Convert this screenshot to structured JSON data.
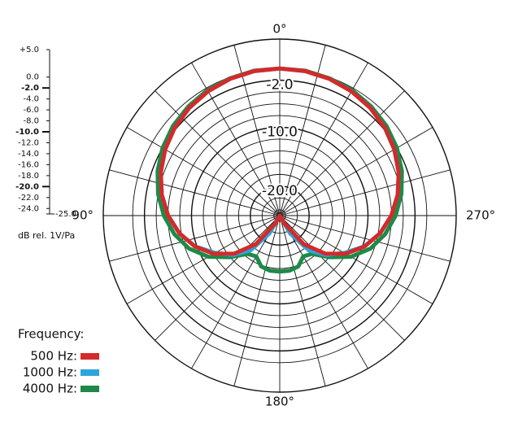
{
  "chart_data": {
    "type": "polar",
    "axis_label": "dB rel. 1V/Pa",
    "rlim": [
      -25,
      5
    ],
    "rticks": [
      {
        "value": 5,
        "label": "+5.0"
      },
      {
        "value": 0,
        "label": "0.0"
      },
      {
        "value": -2,
        "label": "-2.0"
      },
      {
        "value": -4,
        "label": "-4.0"
      },
      {
        "value": -6,
        "label": "-6.0"
      },
      {
        "value": -8,
        "label": "-8.0"
      },
      {
        "value": -10,
        "label": "-10.0"
      },
      {
        "value": -12,
        "label": "-12.0"
      },
      {
        "value": -14,
        "label": "-14.0"
      },
      {
        "value": -16,
        "label": "-16.0"
      },
      {
        "value": -18,
        "label": "-18.0"
      },
      {
        "value": -20,
        "label": "-20.0"
      },
      {
        "value": -22,
        "label": "-22.0"
      },
      {
        "value": -24,
        "label": "-24.0"
      },
      {
        "value": -25,
        "label": "-25.0"
      }
    ],
    "ring_labels": [
      {
        "value": -2,
        "label": "-2.0"
      },
      {
        "value": -10,
        "label": "-10.0"
      },
      {
        "value": -20,
        "label": "-20.0"
      }
    ],
    "angle_labels": [
      {
        "value": 0,
        "label": "0°"
      },
      {
        "value": 90,
        "label": "90°"
      },
      {
        "value": 180,
        "label": "180°"
      },
      {
        "value": 270,
        "label": "270°"
      }
    ],
    "spoke_step": 15,
    "angles": [
      0,
      10,
      20,
      30,
      40,
      50,
      60,
      70,
      80,
      90,
      100,
      110,
      120,
      130,
      140,
      150,
      160,
      170,
      180,
      190,
      200,
      210,
      220,
      230,
      240,
      250,
      260,
      270,
      280,
      290,
      300,
      310,
      320,
      330,
      340,
      350
    ],
    "legend_title": "Frequency:",
    "series": [
      {
        "name": "500 Hz:",
        "color": "#d42a2a",
        "values": [
          0,
          -0.07,
          -0.27,
          -0.6,
          -1.08,
          -1.71,
          -2.5,
          -3.47,
          -4.63,
          -6.02,
          -7.68,
          -9.65,
          -12.04,
          -14.95,
          -18.65,
          -23.5,
          -25,
          -25,
          -25,
          -25,
          -25,
          -23.5,
          -18.65,
          -14.95,
          -12.04,
          -9.65,
          -7.68,
          -6.02,
          -4.63,
          -3.47,
          -2.5,
          -1.71,
          -1.08,
          -0.6,
          -0.27,
          -0.07
        ]
      },
      {
        "name": "1000 Hz:",
        "color": "#2aa6de",
        "values": [
          0,
          -0.07,
          -0.27,
          -0.6,
          -1.08,
          -1.71,
          -2.5,
          -3.47,
          -4.63,
          -6.02,
          -7.68,
          -9.7,
          -12.3,
          -14.6,
          -17.3,
          -21.5,
          -25,
          -25,
          -25,
          -25,
          -25,
          -21.5,
          -17.3,
          -14.6,
          -12.3,
          -9.7,
          -7.68,
          -6.02,
          -4.63,
          -3.47,
          -2.5,
          -1.71,
          -1.08,
          -0.6,
          -0.27,
          -0.07
        ]
      },
      {
        "name": "4000 Hz:",
        "color": "#1d8a48",
        "values": [
          0,
          0,
          -0.2,
          -0.4,
          -0.8,
          -1.3,
          -2.0,
          -2.9,
          -4.0,
          -5.3,
          -6.8,
          -8.6,
          -11.0,
          -14.0,
          -16.5,
          -17.0,
          -15.8,
          -15.5,
          -15.5,
          -15.5,
          -15.8,
          -17.0,
          -16.5,
          -14.0,
          -11.0,
          -8.6,
          -6.8,
          -5.3,
          -4.0,
          -2.9,
          -2.0,
          -1.3,
          -0.8,
          -0.4,
          -0.2,
          0
        ]
      }
    ]
  }
}
